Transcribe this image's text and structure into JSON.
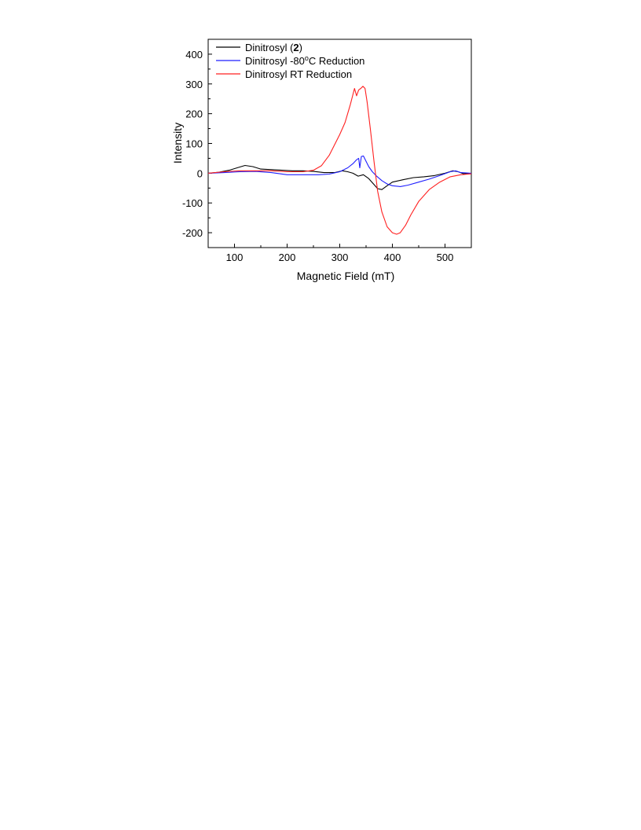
{
  "chart_data": {
    "type": "line",
    "title": "",
    "xlabel": "Magnetic Field (mT)",
    "ylabel": "Intensity",
    "xlim": [
      50,
      550
    ],
    "ylim": [
      -250,
      450
    ],
    "x_ticks": [
      100,
      200,
      300,
      400,
      500
    ],
    "y_ticks": [
      -200,
      -100,
      0,
      100,
      200,
      300,
      400
    ],
    "grid": false,
    "legend_position": "top-left",
    "series": [
      {
        "name_parts": [
          "Dinitrosyl (",
          "2",
          ")"
        ],
        "color": "#000000",
        "x": [
          50,
          70,
          90,
          105,
          120,
          135,
          150,
          170,
          190,
          210,
          230,
          250,
          270,
          290,
          305,
          315,
          325,
          335,
          345,
          355,
          365,
          372,
          380,
          390,
          400,
          420,
          440,
          460,
          480,
          500,
          515,
          525,
          535,
          550
        ],
        "y": [
          0,
          3,
          10,
          18,
          26,
          22,
          14,
          12,
          10,
          8,
          8,
          6,
          2,
          2,
          8,
          5,
          0,
          -10,
          -5,
          -18,
          -38,
          -52,
          -55,
          -42,
          -30,
          -22,
          -15,
          -12,
          -8,
          0,
          8,
          5,
          -2,
          -2
        ]
      },
      {
        "name_parts": [
          "Dinitrosyl -80",
          "o",
          "C Reduction"
        ],
        "color": "#1f1fff",
        "x": [
          50,
          80,
          110,
          140,
          170,
          200,
          230,
          260,
          280,
          300,
          315,
          325,
          332,
          336,
          338,
          341,
          345,
          350,
          355,
          362,
          370,
          380,
          390,
          400,
          415,
          430,
          450,
          470,
          490,
          510,
          520,
          530,
          550
        ],
        "y": [
          0,
          2,
          5,
          6,
          2,
          -5,
          -5,
          -5,
          -3,
          5,
          18,
          32,
          45,
          50,
          18,
          56,
          58,
          40,
          22,
          5,
          -10,
          -25,
          -36,
          -42,
          -45,
          -40,
          -30,
          -20,
          -8,
          5,
          8,
          2,
          0
        ]
      },
      {
        "name_parts": [
          "Dinitrosyl RT Reduction"
        ],
        "color": "#ff2020",
        "x": [
          50,
          80,
          110,
          140,
          170,
          200,
          230,
          250,
          265,
          280,
          290,
          300,
          310,
          320,
          328,
          332,
          336,
          340,
          344,
          348,
          352,
          358,
          365,
          372,
          380,
          390,
          400,
          408,
          415,
          425,
          435,
          450,
          470,
          490,
          510,
          530,
          550
        ],
        "y": [
          0,
          5,
          8,
          8,
          8,
          5,
          5,
          10,
          25,
          60,
          95,
          130,
          170,
          230,
          285,
          260,
          280,
          285,
          292,
          285,
          240,
          150,
          40,
          -60,
          -130,
          -180,
          -200,
          -205,
          -200,
          -175,
          -140,
          -95,
          -55,
          -30,
          -12,
          -5,
          -2
        ]
      }
    ]
  }
}
